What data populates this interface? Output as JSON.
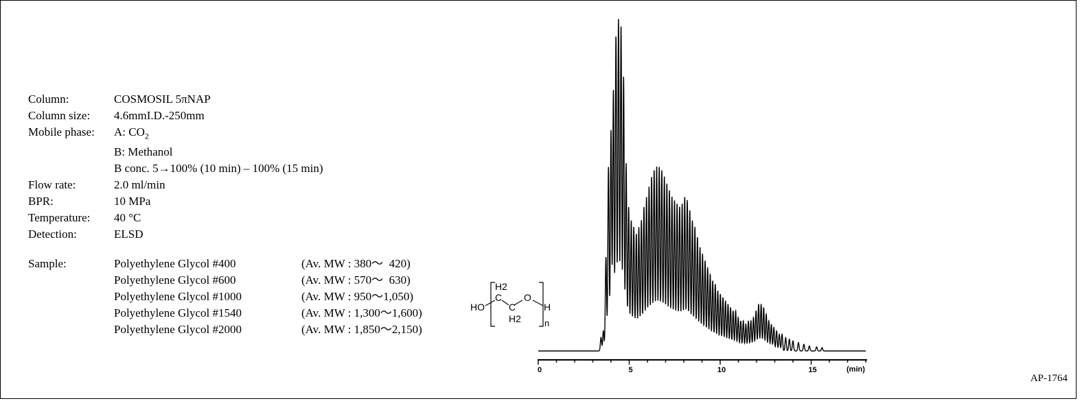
{
  "conditions": {
    "column": {
      "label": "Column:",
      "value": "COSMOSIL  5πNAP"
    },
    "column_size": {
      "label": "Column size:",
      "value": "4.6mmI.D.-250mm"
    },
    "mobile_phase": {
      "label": "Mobile phase:",
      "a_prefix": "A: CO",
      "a_sub": "2",
      "b": "B: Methanol",
      "gradient": "B conc. 5→100% (10 min) – 100% (15 min)"
    },
    "flow_rate": {
      "label": "Flow rate:",
      "value": "2.0 ml/min"
    },
    "bpr": {
      "label": "BPR:",
      "value": "10 MPa"
    },
    "temperature": {
      "label": "Temperature:",
      "value": "40 °C"
    },
    "detection": {
      "label": "Detection:",
      "value": "ELSD"
    }
  },
  "sample": {
    "label": "Sample:",
    "items": [
      {
        "name": "Polyethylene Glycol #400",
        "mw_prefix": "(Av. MW : ",
        "mw_low": "380",
        "mw_high": "  420)"
      },
      {
        "name": "Polyethylene Glycol #600",
        "mw_prefix": "(Av. MW : ",
        "mw_low": "570",
        "mw_high": "  630)"
      },
      {
        "name": "Polyethylene Glycol #1000",
        "mw_prefix": "(Av. MW : ",
        "mw_low": "950",
        "mw_high": "1,050)"
      },
      {
        "name": "Polyethylene Glycol #1540",
        "mw_prefix": "(Av. MW : ",
        "mw_low": "1,300",
        "mw_high": "1,600)"
      },
      {
        "name": "Polyethylene Glycol #2000",
        "mw_prefix": "(Av. MW : ",
        "mw_low": "1,850",
        "mw_high": "2,150)"
      }
    ],
    "tilde": "～"
  },
  "structure": {
    "ho": "HO",
    "h2_top": "H2",
    "c1": "C",
    "c2": "C",
    "o": "O",
    "h2_bottom": "H2",
    "h": "H",
    "n": "n"
  },
  "code": "AP-1764",
  "chart_data": {
    "type": "line",
    "title": "",
    "xlabel": "(min)",
    "ylabel": "",
    "xlim": [
      0,
      18
    ],
    "ylim": [
      0,
      1
    ],
    "xticks": [
      0,
      5,
      10,
      15
    ],
    "xtick_labels": [
      "0",
      "5",
      "10",
      "15"
    ],
    "grid": false,
    "series": [
      {
        "name": "",
        "baseline": 0.0,
        "peaks": [
          {
            "x": 3.45,
            "y": 0.04
          },
          {
            "x": 3.58,
            "y": 0.06
          },
          {
            "x": 3.72,
            "y": 0.28
          },
          {
            "x": 3.86,
            "y": 0.55
          },
          {
            "x": 4.0,
            "y": 0.66
          },
          {
            "x": 4.13,
            "y": 0.78
          },
          {
            "x": 4.27,
            "y": 0.94
          },
          {
            "x": 4.41,
            "y": 0.99
          },
          {
            "x": 4.55,
            "y": 0.97
          },
          {
            "x": 4.69,
            "y": 0.82
          },
          {
            "x": 4.83,
            "y": 0.56
          },
          {
            "x": 4.97,
            "y": 0.43
          },
          {
            "x": 5.11,
            "y": 0.39
          },
          {
            "x": 5.25,
            "y": 0.37
          },
          {
            "x": 5.39,
            "y": 0.35
          },
          {
            "x": 5.53,
            "y": 0.37
          },
          {
            "x": 5.67,
            "y": 0.39
          },
          {
            "x": 5.81,
            "y": 0.43
          },
          {
            "x": 5.95,
            "y": 0.46
          },
          {
            "x": 6.09,
            "y": 0.49
          },
          {
            "x": 6.23,
            "y": 0.52
          },
          {
            "x": 6.37,
            "y": 0.54
          },
          {
            "x": 6.51,
            "y": 0.55
          },
          {
            "x": 6.65,
            "y": 0.55
          },
          {
            "x": 6.79,
            "y": 0.54
          },
          {
            "x": 6.93,
            "y": 0.52
          },
          {
            "x": 7.07,
            "y": 0.5
          },
          {
            "x": 7.21,
            "y": 0.48
          },
          {
            "x": 7.35,
            "y": 0.46
          },
          {
            "x": 7.49,
            "y": 0.45
          },
          {
            "x": 7.63,
            "y": 0.44
          },
          {
            "x": 7.77,
            "y": 0.43
          },
          {
            "x": 7.91,
            "y": 0.44
          },
          {
            "x": 8.05,
            "y": 0.46
          },
          {
            "x": 8.19,
            "y": 0.45
          },
          {
            "x": 8.33,
            "y": 0.42
          },
          {
            "x": 8.47,
            "y": 0.39
          },
          {
            "x": 8.61,
            "y": 0.37
          },
          {
            "x": 8.75,
            "y": 0.34
          },
          {
            "x": 8.89,
            "y": 0.31
          },
          {
            "x": 9.03,
            "y": 0.29
          },
          {
            "x": 9.17,
            "y": 0.27
          },
          {
            "x": 9.31,
            "y": 0.25
          },
          {
            "x": 9.45,
            "y": 0.23
          },
          {
            "x": 9.59,
            "y": 0.21
          },
          {
            "x": 9.73,
            "y": 0.2
          },
          {
            "x": 9.87,
            "y": 0.18
          },
          {
            "x": 10.01,
            "y": 0.17
          },
          {
            "x": 10.15,
            "y": 0.16
          },
          {
            "x": 10.29,
            "y": 0.15
          },
          {
            "x": 10.43,
            "y": 0.14
          },
          {
            "x": 10.57,
            "y": 0.13
          },
          {
            "x": 10.71,
            "y": 0.12
          },
          {
            "x": 10.85,
            "y": 0.12
          },
          {
            "x": 10.99,
            "y": 0.1
          },
          {
            "x": 11.13,
            "y": 0.09
          },
          {
            "x": 11.27,
            "y": 0.09
          },
          {
            "x": 11.41,
            "y": 0.08
          },
          {
            "x": 11.55,
            "y": 0.09
          },
          {
            "x": 11.69,
            "y": 0.09
          },
          {
            "x": 11.83,
            "y": 0.1
          },
          {
            "x": 11.97,
            "y": 0.12
          },
          {
            "x": 12.11,
            "y": 0.14
          },
          {
            "x": 12.25,
            "y": 0.14
          },
          {
            "x": 12.39,
            "y": 0.13
          },
          {
            "x": 12.53,
            "y": 0.11
          },
          {
            "x": 12.67,
            "y": 0.09
          },
          {
            "x": 12.81,
            "y": 0.08
          },
          {
            "x": 12.95,
            "y": 0.07
          },
          {
            "x": 13.1,
            "y": 0.06
          },
          {
            "x": 13.25,
            "y": 0.05
          },
          {
            "x": 13.4,
            "y": 0.05
          },
          {
            "x": 13.6,
            "y": 0.04
          },
          {
            "x": 13.8,
            "y": 0.035
          },
          {
            "x": 14.0,
            "y": 0.03
          },
          {
            "x": 14.3,
            "y": 0.025
          },
          {
            "x": 14.6,
            "y": 0.02
          },
          {
            "x": 14.9,
            "y": 0.015
          },
          {
            "x": 15.3,
            "y": 0.012
          },
          {
            "x": 15.6,
            "y": 0.01
          }
        ]
      }
    ]
  }
}
